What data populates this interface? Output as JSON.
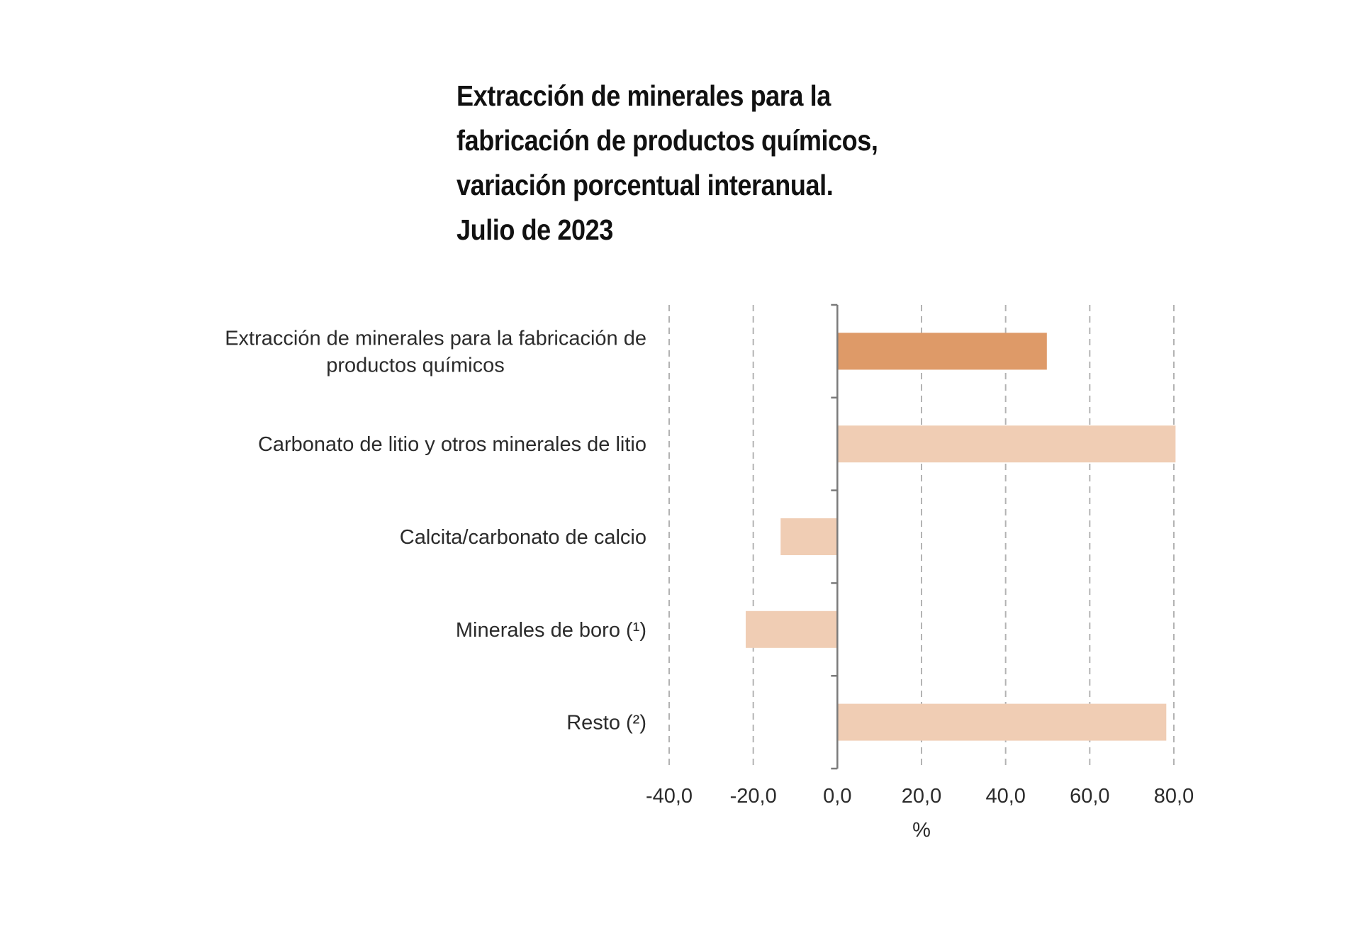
{
  "chart_data": {
    "type": "bar",
    "orientation": "horizontal",
    "title_lines": [
      "Extracción de minerales para la",
      "fabricación de productos químicos,",
      "variación porcentual interanual.",
      "Julio de 2023"
    ],
    "categories": [
      [
        "Extracción de minerales para la fabricación de",
        "productos químicos"
      ],
      [
        "Carbonato de litio y otros minerales de litio"
      ],
      [
        "Calcita/carbonato de calcio"
      ],
      [
        "Minerales de boro (¹)"
      ],
      [
        "Resto (²)"
      ]
    ],
    "values": [
      49.8,
      80.4,
      -13.5,
      -21.8,
      78.2
    ],
    "highlight_index": 0,
    "colors": {
      "highlight": "#DE9A68",
      "default": "#F0CDB4"
    },
    "x_ticks": [
      -40,
      -20,
      0,
      20,
      40,
      60,
      80
    ],
    "x_tick_labels": [
      "-40,0",
      "-20,0",
      "0,0",
      "20,0",
      "40,0",
      "60,0",
      "80,0"
    ],
    "xlim": [
      -40,
      80
    ],
    "xlabel": "%",
    "grid": true
  }
}
